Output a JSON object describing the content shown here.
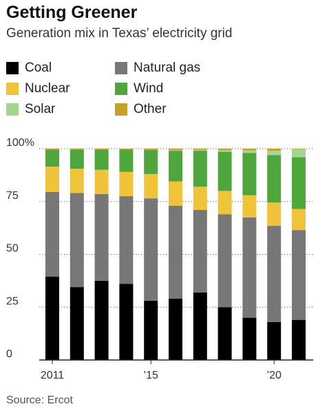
{
  "header": {
    "title": "Getting Greener",
    "subtitle": "Generation mix in Texas’ electricity grid"
  },
  "legend": [
    {
      "name": "Coal",
      "color": "#000000"
    },
    {
      "name": "Natural gas",
      "color": "#777777"
    },
    {
      "name": "Nuclear",
      "color": "#f0c43a"
    },
    {
      "name": "Wind",
      "color": "#4fa63c"
    },
    {
      "name": "Solar",
      "color": "#a5d592"
    },
    {
      "name": "Other",
      "color": "#c6a22c"
    }
  ],
  "source": "Source: Ercot",
  "chart_data": {
    "type": "bar",
    "stacked": true,
    "categories": [
      "2011",
      "2012",
      "2013",
      "2014",
      "2015",
      "2016",
      "2017",
      "2018",
      "2019",
      "2020",
      "2021"
    ],
    "x_tick_labels": [
      {
        "category": "2011",
        "label": "2011"
      },
      {
        "category": "2015",
        "label": "’15"
      },
      {
        "category": "2020",
        "label": "’20"
      }
    ],
    "y_tick_labels": [
      {
        "value": 100,
        "label": "100%"
      },
      {
        "value": 75,
        "label": "75"
      },
      {
        "value": 50,
        "label": "50"
      },
      {
        "value": 25,
        "label": "25"
      },
      {
        "value": 0,
        "label": "0"
      }
    ],
    "ylim": [
      0,
      100
    ],
    "grid": "horizontal",
    "series": [
      {
        "name": "Coal",
        "color": "#000000",
        "values": [
          39.5,
          34.5,
          37.5,
          36,
          28,
          29,
          32,
          25,
          20,
          18,
          19
        ]
      },
      {
        "name": "Natural gas",
        "color": "#777777",
        "values": [
          40,
          44.5,
          41,
          41.5,
          48.5,
          44,
          39,
          44,
          47.5,
          45.5,
          42.5
        ]
      },
      {
        "name": "Nuclear",
        "color": "#f0c43a",
        "values": [
          12,
          11.5,
          11.5,
          11.5,
          11.5,
          11.5,
          11,
          11,
          10.5,
          11,
          10
        ]
      },
      {
        "name": "Wind",
        "color": "#4fa63c",
        "values": [
          8,
          9,
          9.5,
          10.5,
          11.5,
          14.5,
          17,
          18.5,
          20,
          22.5,
          24.5
        ]
      },
      {
        "name": "Solar",
        "color": "#a5d592",
        "values": [
          0,
          0,
          0,
          0,
          0.1,
          0.3,
          0.5,
          0.8,
          1.2,
          2,
          3.8
        ]
      },
      {
        "name": "Other",
        "color": "#c6a22c",
        "values": [
          0.5,
          0.5,
          0.5,
          0.5,
          0.5,
          0.7,
          0.5,
          0.7,
          0.8,
          1,
          0.2
        ]
      }
    ]
  }
}
